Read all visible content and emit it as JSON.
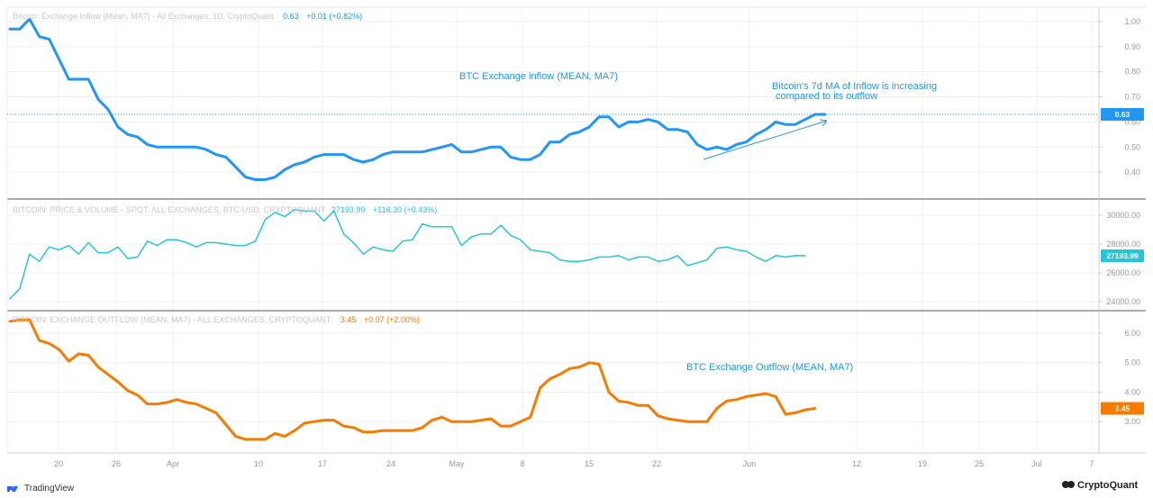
{
  "branding": {
    "tradingview": "TradingView",
    "cryptoquant": "CryptoQuant"
  },
  "x_axis": {
    "labels": [
      "20",
      "26",
      "Apr",
      "10",
      "17",
      "24",
      "May",
      "8",
      "15",
      "22",
      "Jun",
      "12",
      "19",
      "25",
      "Jul",
      "7"
    ]
  },
  "chart_data": [
    {
      "type": "line",
      "id": "inflow",
      "title": "Bitcoin: Exchange Inflow (Mean, MA7) - All Exchanges, 1D, CryptoQuant",
      "last_value": "0.63",
      "change": "+0.01 (+0.82%)",
      "color": "#2196f3",
      "ylim": [
        0.3,
        1.05
      ],
      "yticks": [
        "1.00",
        "0.90",
        "0.80",
        "0.70",
        "0.60",
        "0.50",
        "0.40"
      ],
      "annotations": [
        "BTC Exchange inflow (MEAN, MA7)",
        "Bitcoin's 7d MA of Inflow is increasing",
        "compared to its outflow"
      ],
      "values": [
        0.97,
        0.97,
        1.01,
        0.94,
        0.93,
        0.85,
        0.77,
        0.77,
        0.77,
        0.69,
        0.65,
        0.58,
        0.55,
        0.54,
        0.51,
        0.5,
        0.5,
        0.5,
        0.5,
        0.5,
        0.49,
        0.47,
        0.46,
        0.42,
        0.38,
        0.37,
        0.37,
        0.38,
        0.41,
        0.43,
        0.44,
        0.46,
        0.47,
        0.47,
        0.47,
        0.45,
        0.44,
        0.45,
        0.47,
        0.48,
        0.48,
        0.48,
        0.48,
        0.49,
        0.5,
        0.51,
        0.48,
        0.48,
        0.49,
        0.5,
        0.5,
        0.46,
        0.45,
        0.45,
        0.47,
        0.52,
        0.52,
        0.55,
        0.56,
        0.58,
        0.62,
        0.62,
        0.58,
        0.6,
        0.6,
        0.61,
        0.6,
        0.57,
        0.57,
        0.56,
        0.51,
        0.49,
        0.5,
        0.49,
        0.51,
        0.52,
        0.55,
        0.57,
        0.6,
        0.59,
        0.59,
        0.61,
        0.63,
        0.63
      ]
    },
    {
      "type": "line",
      "id": "price",
      "title": "BITCOIN: PRICE & VOLUME - SPOT, ALL EXCHANGES, BTC-USD, CRYPTOQUANT",
      "last_value": "27193.99",
      "change": "+116.30 (+0.43%)",
      "color": "#26c6da",
      "ylim": [
        23500,
        31000
      ],
      "yticks": [
        "30000.00",
        "28000.00",
        "26000.00",
        "24000.00"
      ],
      "values": [
        24200,
        24900,
        27300,
        26800,
        27800,
        27600,
        27900,
        27300,
        28100,
        27400,
        27400,
        27800,
        27000,
        27100,
        28200,
        27900,
        28300,
        28300,
        28100,
        27800,
        28100,
        28100,
        28000,
        27900,
        27900,
        28200,
        29700,
        30200,
        29900,
        30400,
        30300,
        30300,
        29600,
        30300,
        28700,
        28100,
        27300,
        27800,
        27600,
        27500,
        28200,
        28300,
        29400,
        29200,
        29200,
        29200,
        27900,
        28500,
        28700,
        28700,
        29300,
        28600,
        28300,
        27600,
        27500,
        27400,
        26900,
        26800,
        26800,
        26900,
        27100,
        27100,
        27200,
        26900,
        27100,
        27100,
        26800,
        26900,
        27200,
        26500,
        26700,
        26900,
        27700,
        27800,
        27600,
        27500,
        27100,
        26800,
        27200,
        27100,
        27200,
        27190
      ]
    },
    {
      "type": "line",
      "id": "outflow",
      "title": "BITCOIN: EXCHANGE OUTFLOW (MEAN, MA7) - ALL EXCHANGES, CRYPTOQUANT",
      "last_value": "3.45",
      "change": "+0.07 (+2.00%)",
      "color": "#f57c00",
      "ylim": [
        2.0,
        6.7
      ],
      "yticks": [
        "6.00",
        "5.00",
        "4.00",
        "3.00"
      ],
      "annotations": [
        "BTC Exchange Outflow (MEAN, MA7)"
      ],
      "values": [
        6.4,
        6.45,
        6.45,
        5.75,
        5.65,
        5.45,
        5.05,
        5.3,
        5.25,
        4.85,
        4.6,
        4.35,
        4.05,
        3.9,
        3.6,
        3.6,
        3.65,
        3.75,
        3.65,
        3.6,
        3.45,
        3.3,
        2.9,
        2.5,
        2.4,
        2.4,
        2.4,
        2.6,
        2.5,
        2.7,
        2.95,
        3.0,
        3.05,
        3.05,
        2.85,
        2.8,
        2.65,
        2.65,
        2.7,
        2.7,
        2.7,
        2.7,
        2.8,
        3.05,
        3.15,
        3.0,
        3.0,
        3.0,
        3.05,
        3.1,
        2.85,
        2.85,
        3.0,
        3.15,
        4.15,
        4.45,
        4.6,
        4.8,
        4.85,
        5.0,
        4.95,
        4.0,
        3.7,
        3.65,
        3.55,
        3.55,
        3.2,
        3.1,
        3.05,
        3.0,
        3.0,
        3.0,
        3.45,
        3.7,
        3.75,
        3.85,
        3.9,
        3.95,
        3.85,
        3.25,
        3.3,
        3.4,
        3.45
      ]
    }
  ]
}
